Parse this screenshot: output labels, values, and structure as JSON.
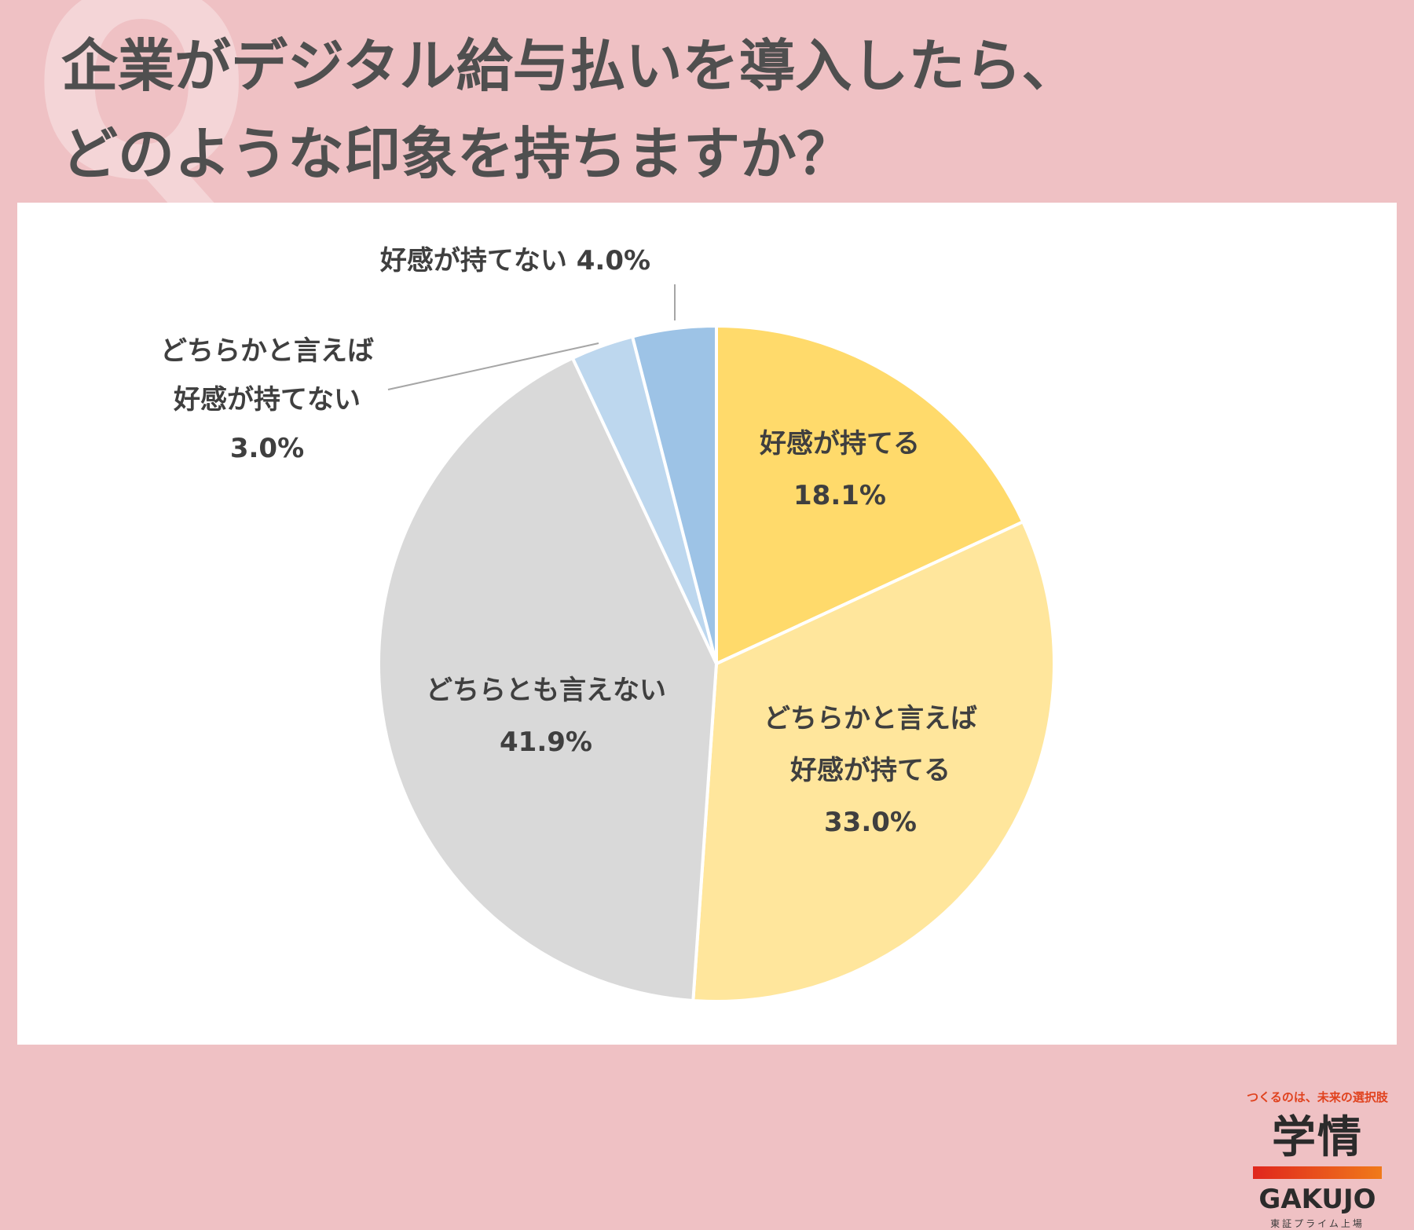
{
  "page": {
    "title_line1": "企業がデジタル給与払いを導入したら、",
    "title_line2": "どのような印象を持ちますか？",
    "deco_glyph": "Q"
  },
  "logo": {
    "tagline": "つくるのは、未来の選択肢",
    "main": "学情",
    "english": "GAKUJO",
    "subline": "東証プライム上場"
  },
  "chart_data": {
    "type": "pie",
    "title": "",
    "slices": [
      {
        "label_lines": [
          "好感が持てる"
        ],
        "value": 18.1,
        "value_text": "18.1%",
        "color": "#ffda6b",
        "label_position": "inside"
      },
      {
        "label_lines": [
          "どちらかと言えば",
          "好感が持てる"
        ],
        "value": 33.0,
        "value_text": "33.0%",
        "color": "#ffe69c",
        "label_position": "inside"
      },
      {
        "label_lines": [
          "どちらとも言えない"
        ],
        "value": 41.9,
        "value_text": "41.9%",
        "color": "#d9d9d9",
        "label_position": "inside"
      },
      {
        "label_lines": [
          "どちらかと言えば",
          "好感が持てない"
        ],
        "value": 3.0,
        "value_text": "3.0%",
        "color": "#bdd7ee",
        "label_position": "outside"
      },
      {
        "label_lines": [
          "好感が持てない"
        ],
        "value": 4.0,
        "value_text": "4.0%",
        "color": "#9dc3e6",
        "label_position": "outside"
      }
    ],
    "start": "12 o'clock",
    "direction": "clockwise",
    "legend": "none"
  }
}
